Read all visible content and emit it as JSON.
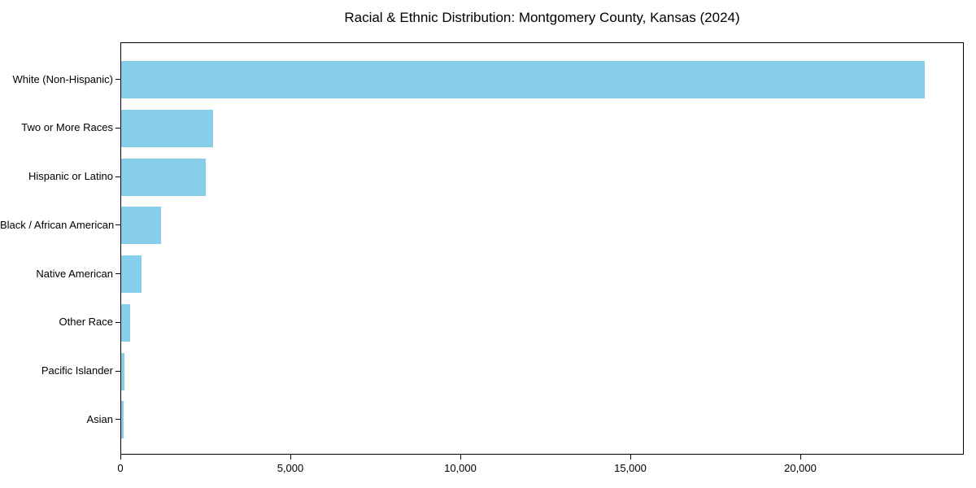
{
  "title": "Racial & Ethnic Distribution: Montgomery County, Kansas (2024)",
  "chart_data": {
    "type": "bar",
    "orientation": "horizontal",
    "title": "Racial & Ethnic Distribution: Montgomery County, Kansas (2024)",
    "categories": [
      "White (Non-Hispanic)",
      "Two or More Races",
      "Hispanic or Latino",
      "Black / African American",
      "Native American",
      "Other Race",
      "Pacific Islander",
      "Asian"
    ],
    "values": [
      23630,
      2700,
      2490,
      1180,
      590,
      265,
      95,
      70
    ],
    "xticks": [
      {
        "value": 0,
        "label": "0"
      },
      {
        "value": 5000,
        "label": "5,000"
      },
      {
        "value": 10000,
        "label": "10,000"
      },
      {
        "value": 15000,
        "label": "15,000"
      },
      {
        "value": 20000,
        "label": "20,000"
      }
    ],
    "xlabel": "",
    "ylabel": "",
    "xlim": [
      0,
      24810
    ],
    "grid": false,
    "legend": false,
    "bar_color": "#87CEEB",
    "background_color": "#ffffff",
    "frame_color": "#000000",
    "text_color": "#000000"
  }
}
